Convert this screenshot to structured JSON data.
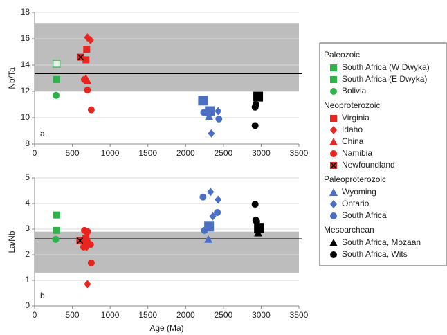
{
  "chart_data": [
    {
      "type": "scatter",
      "panel_label": "a",
      "ylabel": "Nb/Ta",
      "xlim": [
        0,
        3500
      ],
      "xticks": [
        0,
        500,
        1000,
        1500,
        2000,
        2500,
        3000,
        3500
      ],
      "ylim": [
        8,
        18
      ],
      "yticks": [
        8,
        10,
        12,
        14,
        16,
        18
      ],
      "grid": true,
      "band": [
        12,
        17.2
      ],
      "reference_line": 13.35,
      "series": [
        {
          "name": "South Africa (W Dwyka)",
          "group": "Paleozoic",
          "color": "#2eb34a",
          "marker": "square-open",
          "x": [
            290
          ],
          "values": [
            14.1
          ]
        },
        {
          "name": "South Africa (E Dwyka)",
          "group": "Paleozoic",
          "color": "#2eb34a",
          "marker": "square",
          "x": [
            290
          ],
          "values": [
            12.9
          ]
        },
        {
          "name": "Bolivia",
          "group": "Paleozoic",
          "color": "#2eb34a",
          "marker": "circle",
          "x": [
            285
          ],
          "values": [
            11.7
          ]
        },
        {
          "name": "Virginia",
          "group": "Neoproterozoic",
          "color": "#e8251f",
          "marker": "square",
          "x": [
            690,
            680
          ],
          "values": [
            15.2,
            14.4
          ]
        },
        {
          "name": "Idaho",
          "group": "Neoproterozoic",
          "color": "#e8251f",
          "marker": "diamond",
          "x": [
            700,
            740
          ],
          "values": [
            16.1,
            15.9
          ]
        },
        {
          "name": "China",
          "group": "Neoproterozoic",
          "color": "#e8251f",
          "marker": "triangle",
          "x": [
            680,
            700
          ],
          "values": [
            13.0,
            12.8
          ]
        },
        {
          "name": "Namibia",
          "group": "Neoproterozoic",
          "color": "#e8251f",
          "marker": "circle",
          "x": [
            660,
            700,
            750
          ],
          "values": [
            12.9,
            12.1,
            10.6
          ]
        },
        {
          "name": "Newfoundland",
          "group": "Neoproterozoic",
          "color": "#e8251f",
          "marker": "square-x",
          "x": [
            610
          ],
          "values": [
            14.6
          ]
        },
        {
          "name": "Wyoming",
          "group": "Paleoproterozoic",
          "color": "#4a6fc4",
          "marker": "triangle",
          "x": [
            2310
          ],
          "values": [
            10.1
          ]
        },
        {
          "name": "Ontario",
          "group": "Paleoproterozoic",
          "color": "#4a6fc4",
          "marker": "diamond",
          "x": [
            2340,
            2430
          ],
          "values": [
            8.8,
            10.5
          ]
        },
        {
          "name": "South Africa",
          "group": "Paleoproterozoic",
          "color": "#4a6fc4",
          "marker": "circle",
          "x": [
            2240,
            2440
          ],
          "values": [
            10.4,
            9.9
          ]
        },
        {
          "name": "South Africa, Mozaan",
          "group": "Mesoarchean",
          "color": "#000000",
          "marker": "triangle",
          "x": [
            2950
          ],
          "values": [
            11.6
          ]
        },
        {
          "name": "South Africa, Wits",
          "group": "Mesoarchean",
          "color": "#000000",
          "marker": "circle",
          "x": [
            2930,
            2920,
            2920
          ],
          "values": [
            11.0,
            10.8,
            9.4
          ]
        }
      ],
      "means": [
        {
          "color": "#4a6fc4",
          "x": 2230,
          "y": 11.3
        },
        {
          "color": "#4a6fc4",
          "x": 2320,
          "y": 10.5
        },
        {
          "color": "#000000",
          "x": 2960,
          "y": 11.6
        }
      ]
    },
    {
      "type": "scatter",
      "panel_label": "b",
      "ylabel": "La/Nb",
      "xlabel": "Age (Ma)",
      "xlim": [
        0,
        3500
      ],
      "xticks": [
        0,
        500,
        1000,
        1500,
        2000,
        2500,
        3000,
        3500
      ],
      "ylim": [
        0,
        5
      ],
      "yticks": [
        0,
        1,
        2,
        3,
        4,
        5
      ],
      "grid": true,
      "band": [
        1.3,
        2.9
      ],
      "reference_line": 2.62,
      "series": [
        {
          "color": "#2eb34a",
          "marker": "square",
          "x": [
            290
          ],
          "values": [
            3.55
          ]
        },
        {
          "color": "#2eb34a",
          "marker": "square",
          "x": [
            290
          ],
          "values": [
            2.95
          ]
        },
        {
          "color": "#2eb34a",
          "marker": "circle",
          "x": [
            280
          ],
          "values": [
            2.6
          ]
        },
        {
          "color": "#e8251f",
          "marker": "square",
          "x": [
            680,
            640
          ],
          "values": [
            2.65,
            2.55
          ]
        },
        {
          "color": "#e8251f",
          "marker": "diamond",
          "x": [
            700,
            690
          ],
          "values": [
            0.85,
            2.3
          ]
        },
        {
          "color": "#e8251f",
          "marker": "triangle",
          "x": [
            680
          ],
          "values": [
            2.75
          ]
        },
        {
          "color": "#e8251f",
          "marker": "circle",
          "x": [
            660,
            700,
            700,
            740,
            650,
            750
          ],
          "values": [
            2.95,
            2.9,
            2.5,
            2.4,
            2.3,
            1.68
          ]
        },
        {
          "color": "#e8251f",
          "marker": "square-x",
          "x": [
            600
          ],
          "values": [
            2.55
          ]
        },
        {
          "color": "#4a6fc4",
          "marker": "triangle",
          "x": [
            2300
          ],
          "values": [
            2.6
          ]
        },
        {
          "color": "#4a6fc4",
          "marker": "diamond",
          "x": [
            2330,
            2430,
            2360
          ],
          "values": [
            4.45,
            4.15,
            3.5
          ]
        },
        {
          "color": "#4a6fc4",
          "marker": "circle",
          "x": [
            2230,
            2250,
            2420
          ],
          "values": [
            4.25,
            2.95,
            3.65
          ]
        },
        {
          "color": "#000000",
          "marker": "triangle",
          "x": [
            2960
          ],
          "values": [
            2.85
          ]
        },
        {
          "color": "#000000",
          "marker": "circle",
          "x": [
            2920,
            2930,
            2940
          ],
          "values": [
            3.97,
            3.35,
            3.3
          ]
        }
      ],
      "means": [
        {
          "color": "#4a6fc4",
          "x": 2310,
          "y": 3.1
        },
        {
          "color": "#000000",
          "x": 2970,
          "y": 3.05
        }
      ]
    }
  ]
}
